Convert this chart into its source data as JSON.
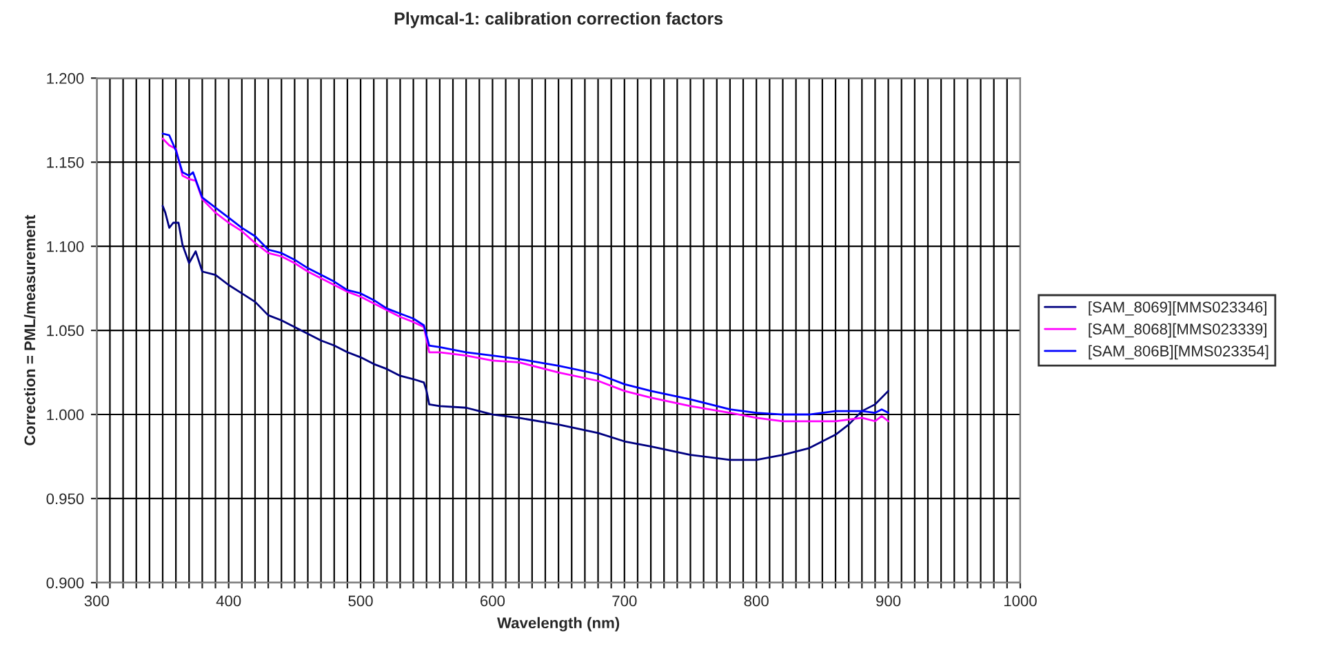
{
  "chart_data": {
    "type": "line",
    "title": "Plymcal-1: calibration correction factors",
    "xlabel": "Wavelength (nm)",
    "ylabel": "Correction = PML/measurement",
    "series": [
      {
        "name": "[SAM_8069][MMS023346]",
        "color": "#000080",
        "x": [
          350,
          352,
          355,
          358,
          362,
          365,
          370,
          375,
          380,
          390,
          400,
          410,
          420,
          430,
          440,
          450,
          460,
          470,
          480,
          490,
          500,
          510,
          520,
          530,
          540,
          548,
          550,
          552,
          560,
          580,
          590,
          600,
          620,
          650,
          680,
          700,
          720,
          750,
          780,
          800,
          820,
          840,
          860,
          870,
          880,
          890,
          900
        ],
        "values": [
          1.124,
          1.12,
          1.111,
          1.114,
          1.114,
          1.101,
          1.09,
          1.097,
          1.085,
          1.083,
          1.077,
          1.072,
          1.067,
          1.059,
          1.056,
          1.052,
          1.048,
          1.044,
          1.041,
          1.037,
          1.034,
          1.03,
          1.027,
          1.023,
          1.021,
          1.019,
          1.014,
          1.006,
          1.005,
          1.004,
          1.002,
          1.0,
          0.998,
          0.994,
          0.989,
          0.984,
          0.981,
          0.976,
          0.973,
          0.973,
          0.976,
          0.98,
          0.988,
          0.994,
          1.002,
          1.006,
          1.014
        ]
      },
      {
        "name": "[SAM_8068][MMS023339]",
        "color": "#ff00ff",
        "x": [
          350,
          355,
          360,
          365,
          370,
          375,
          380,
          390,
          400,
          410,
          420,
          430,
          440,
          450,
          460,
          470,
          480,
          490,
          500,
          510,
          520,
          530,
          540,
          548,
          552,
          560,
          580,
          600,
          620,
          650,
          680,
          700,
          720,
          750,
          780,
          800,
          820,
          840,
          860,
          880,
          890,
          895,
          900
        ],
        "values": [
          1.164,
          1.16,
          1.158,
          1.142,
          1.14,
          1.139,
          1.128,
          1.12,
          1.114,
          1.109,
          1.102,
          1.096,
          1.094,
          1.09,
          1.085,
          1.081,
          1.077,
          1.073,
          1.07,
          1.066,
          1.062,
          1.058,
          1.055,
          1.052,
          1.037,
          1.037,
          1.035,
          1.032,
          1.031,
          1.025,
          1.02,
          1.014,
          1.01,
          1.005,
          1.001,
          0.998,
          0.996,
          0.996,
          0.996,
          0.998,
          0.996,
          0.999,
          0.996
        ]
      },
      {
        "name": "[SAM_806B][MMS023354]",
        "color": "#0000ff",
        "x": [
          350,
          355,
          360,
          365,
          370,
          373,
          380,
          390,
          400,
          410,
          420,
          430,
          440,
          450,
          460,
          470,
          480,
          490,
          500,
          510,
          520,
          530,
          540,
          548,
          552,
          560,
          580,
          600,
          620,
          650,
          680,
          700,
          720,
          750,
          780,
          800,
          820,
          840,
          860,
          880,
          890,
          895,
          900
        ],
        "values": [
          1.167,
          1.166,
          1.157,
          1.144,
          1.142,
          1.144,
          1.129,
          1.123,
          1.117,
          1.111,
          1.106,
          1.098,
          1.096,
          1.092,
          1.087,
          1.083,
          1.079,
          1.074,
          1.072,
          1.068,
          1.063,
          1.06,
          1.057,
          1.053,
          1.041,
          1.04,
          1.037,
          1.035,
          1.033,
          1.029,
          1.024,
          1.018,
          1.014,
          1.009,
          1.003,
          1.001,
          1.0,
          1.0,
          1.002,
          1.002,
          1.001,
          1.003,
          1.001
        ]
      }
    ],
    "xlim": [
      300,
      1000
    ],
    "xticks": [
      300,
      {
        "value": 310,
        "label": null
      },
      {
        "value": 320,
        "label": null
      },
      {
        "value": 330,
        "label": null
      },
      {
        "value": 340,
        "label": null
      },
      {
        "value": 350,
        "label": null
      },
      {
        "value": 360,
        "label": null
      },
      {
        "value": 370,
        "label": null
      },
      {
        "value": 380,
        "label": null
      },
      {
        "value": 390,
        "label": null
      },
      400,
      {
        "value": 410,
        "label": null
      },
      {
        "value": 420,
        "label": null
      },
      {
        "value": 430,
        "label": null
      },
      {
        "value": 440,
        "label": null
      },
      {
        "value": 450,
        "label": null
      },
      {
        "value": 460,
        "label": null
      },
      {
        "value": 470,
        "label": null
      },
      {
        "value": 480,
        "label": null
      },
      {
        "value": 490,
        "label": null
      },
      500,
      {
        "value": 510,
        "label": null
      },
      {
        "value": 520,
        "label": null
      },
      {
        "value": 530,
        "label": null
      },
      {
        "value": 540,
        "label": null
      },
      {
        "value": 550,
        "label": null
      },
      {
        "value": 560,
        "label": null
      },
      {
        "value": 570,
        "label": null
      },
      {
        "value": 580,
        "label": null
      },
      {
        "value": 590,
        "label": null
      },
      600,
      {
        "value": 610,
        "label": null
      },
      {
        "value": 620,
        "label": null
      },
      {
        "value": 630,
        "label": null
      },
      {
        "value": 640,
        "label": null
      },
      {
        "value": 650,
        "label": null
      },
      {
        "value": 660,
        "label": null
      },
      {
        "value": 670,
        "label": null
      },
      {
        "value": 680,
        "label": null
      },
      {
        "value": 690,
        "label": null
      },
      700,
      {
        "value": 710,
        "label": null
      },
      {
        "value": 720,
        "label": null
      },
      {
        "value": 730,
        "label": null
      },
      {
        "value": 740,
        "label": null
      },
      {
        "value": 750,
        "label": null
      },
      {
        "value": 760,
        "label": null
      },
      {
        "value": 770,
        "label": null
      },
      {
        "value": 780,
        "label": null
      },
      {
        "value": 790,
        "label": null
      },
      800,
      {
        "value": 810,
        "label": null
      },
      {
        "value": 820,
        "label": null
      },
      {
        "value": 830,
        "label": null
      },
      {
        "value": 840,
        "label": null
      },
      {
        "value": 850,
        "label": null
      },
      {
        "value": 860,
        "label": null
      },
      {
        "value": 870,
        "label": null
      },
      {
        "value": 880,
        "label": null
      },
      {
        "value": 890,
        "label": null
      },
      900,
      {
        "value": 910,
        "label": null
      },
      {
        "value": 920,
        "label": null
      },
      {
        "value": 930,
        "label": null
      },
      {
        "value": 940,
        "label": null
      },
      {
        "value": 950,
        "label": null
      },
      {
        "value": 960,
        "label": null
      },
      {
        "value": 970,
        "label": null
      },
      {
        "value": 980,
        "label": null
      },
      {
        "value": 990,
        "label": null
      },
      1000
    ],
    "ylim": [
      0.9,
      1.2
    ],
    "yticks": [
      {
        "value": 0.9,
        "label": "0.900"
      },
      {
        "value": 0.95,
        "label": "0.950"
      },
      {
        "value": 1.0,
        "label": "1.000"
      },
      {
        "value": 1.05,
        "label": "1.050"
      },
      {
        "value": 1.1,
        "label": "1.100"
      },
      {
        "value": 1.15,
        "label": "1.150"
      },
      {
        "value": 1.2,
        "label": "1.200"
      }
    ],
    "grid": true,
    "legend": "right",
    "marker": "none",
    "line_style": "solid"
  }
}
